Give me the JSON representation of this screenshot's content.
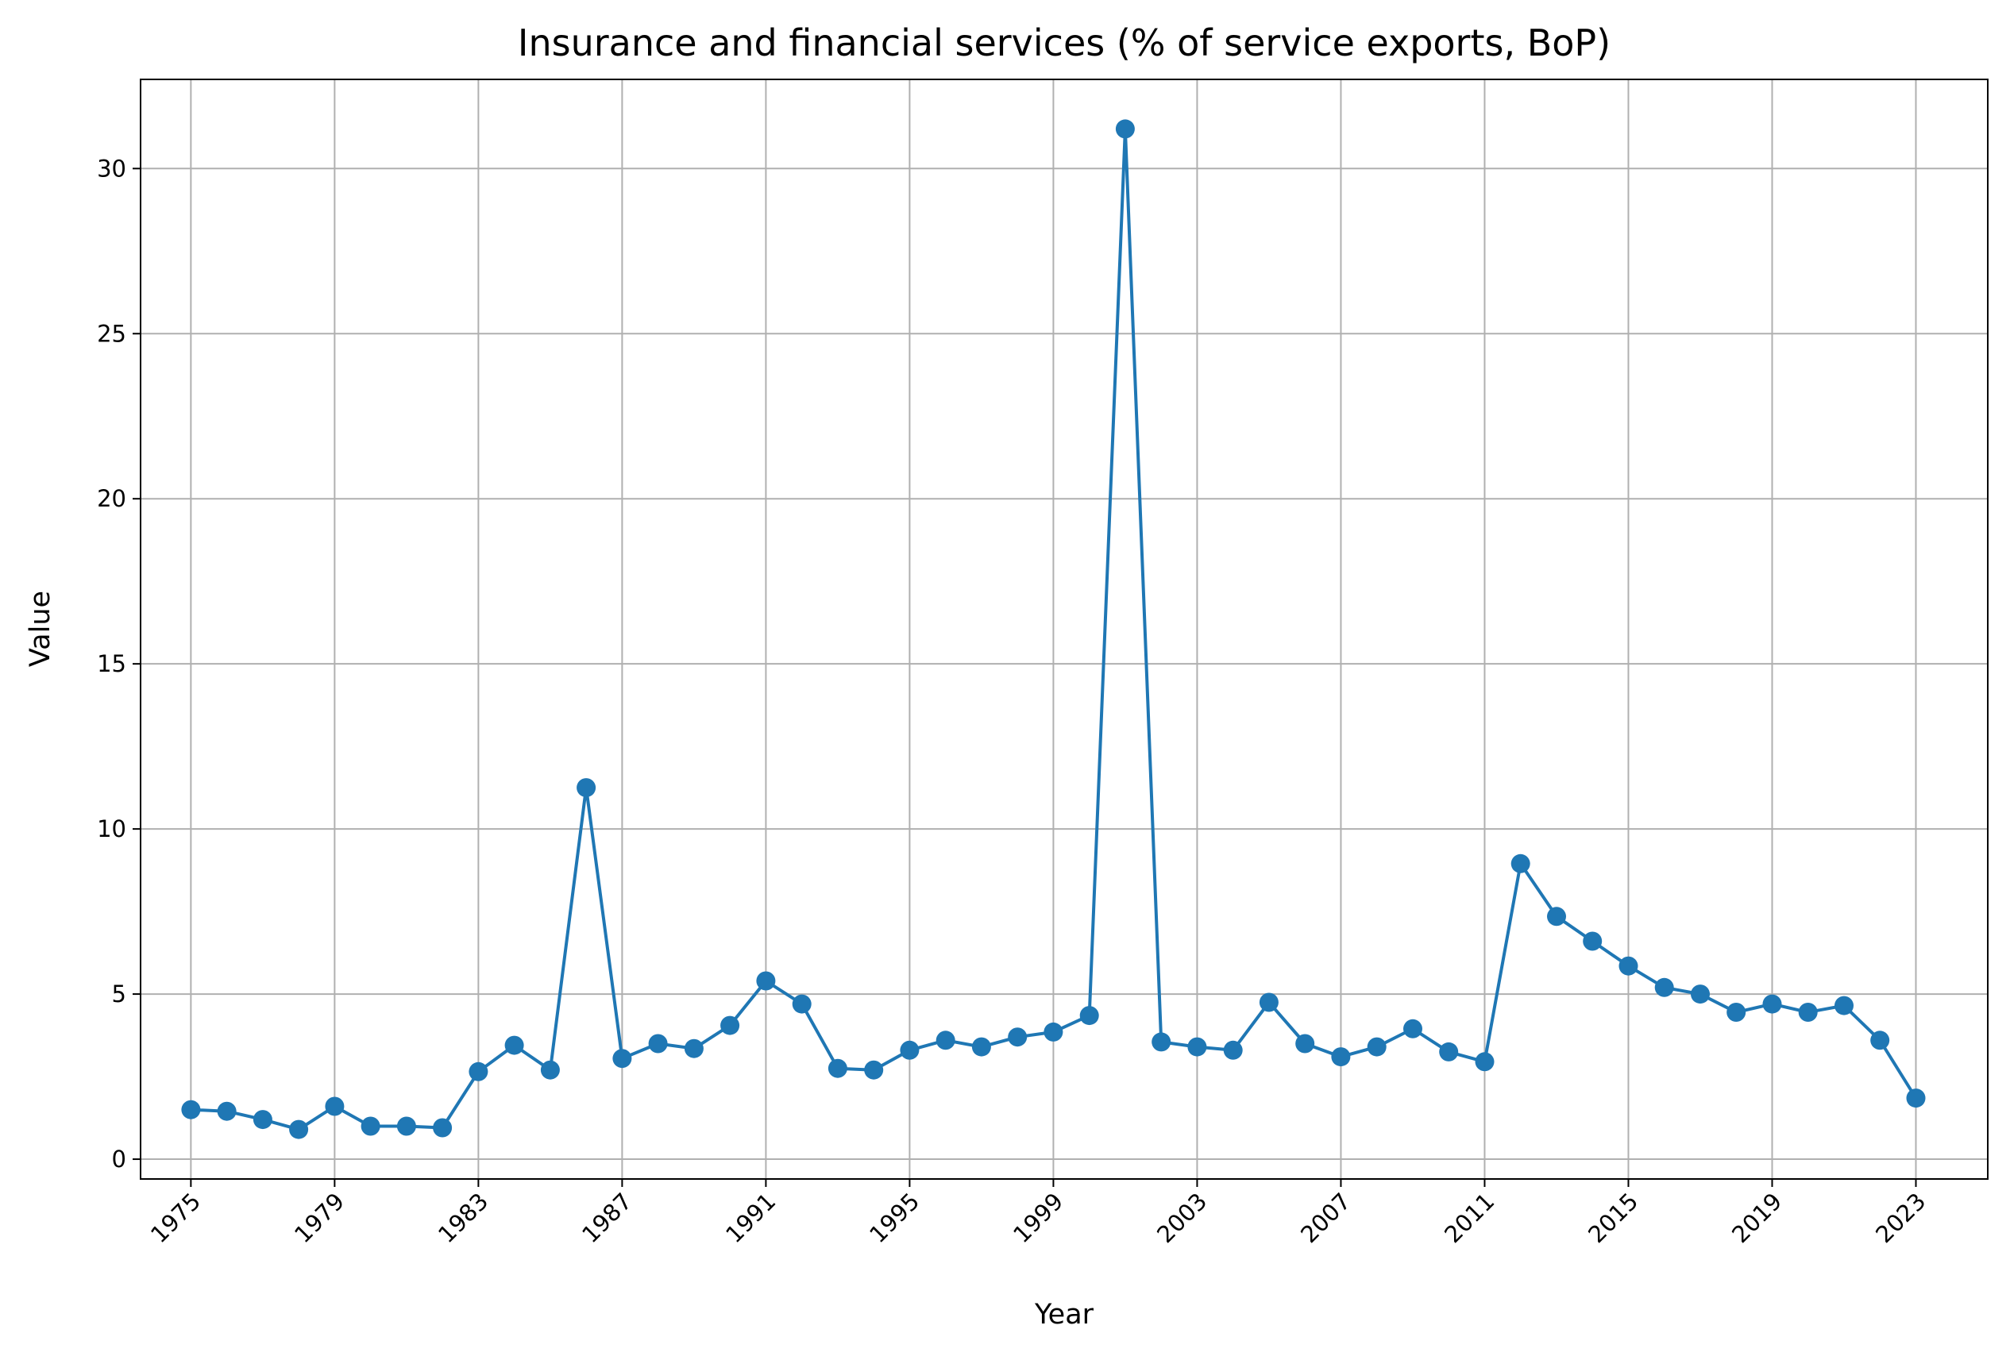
{
  "chart_data": {
    "type": "line",
    "title": "Insurance and financial services (% of service exports, BoP)",
    "xlabel": "Year",
    "ylabel": "Value",
    "grid": true,
    "legend": "none",
    "xlim": [
      1973.6,
      2025.0
    ],
    "ylim": [
      -0.6,
      32.7
    ],
    "x_ticks": [
      1975,
      1979,
      1983,
      1987,
      1991,
      1995,
      1999,
      2003,
      2007,
      2011,
      2015,
      2019,
      2023
    ],
    "y_ticks": [
      0,
      5,
      10,
      15,
      20,
      25,
      30
    ],
    "series": [
      {
        "color": "#1f77b4",
        "marker": "circle",
        "x": [
          1975,
          1976,
          1977,
          1978,
          1979,
          1980,
          1981,
          1982,
          1983,
          1984,
          1985,
          1986,
          1987,
          1988,
          1989,
          1990,
          1991,
          1992,
          1993,
          1994,
          1995,
          1996,
          1997,
          1998,
          1999,
          2000,
          2001,
          2002,
          2003,
          2004,
          2005,
          2006,
          2007,
          2008,
          2009,
          2010,
          2011,
          2012,
          2013,
          2014,
          2015,
          2016,
          2017,
          2018,
          2019,
          2020,
          2021,
          2022,
          2023
        ],
        "values": [
          1.5,
          1.45,
          1.2,
          0.9,
          1.6,
          1.0,
          1.0,
          0.95,
          2.65,
          3.45,
          2.7,
          11.25,
          3.05,
          3.5,
          3.35,
          4.05,
          5.4,
          4.7,
          2.75,
          2.7,
          3.3,
          3.6,
          3.4,
          3.7,
          3.85,
          4.35,
          31.2,
          3.55,
          3.4,
          3.3,
          4.75,
          3.5,
          3.1,
          3.4,
          3.95,
          3.25,
          2.95,
          8.95,
          7.35,
          6.6,
          5.85,
          5.2,
          5.0,
          4.45,
          4.7,
          4.45,
          4.65,
          3.6,
          1.85
        ]
      }
    ]
  }
}
